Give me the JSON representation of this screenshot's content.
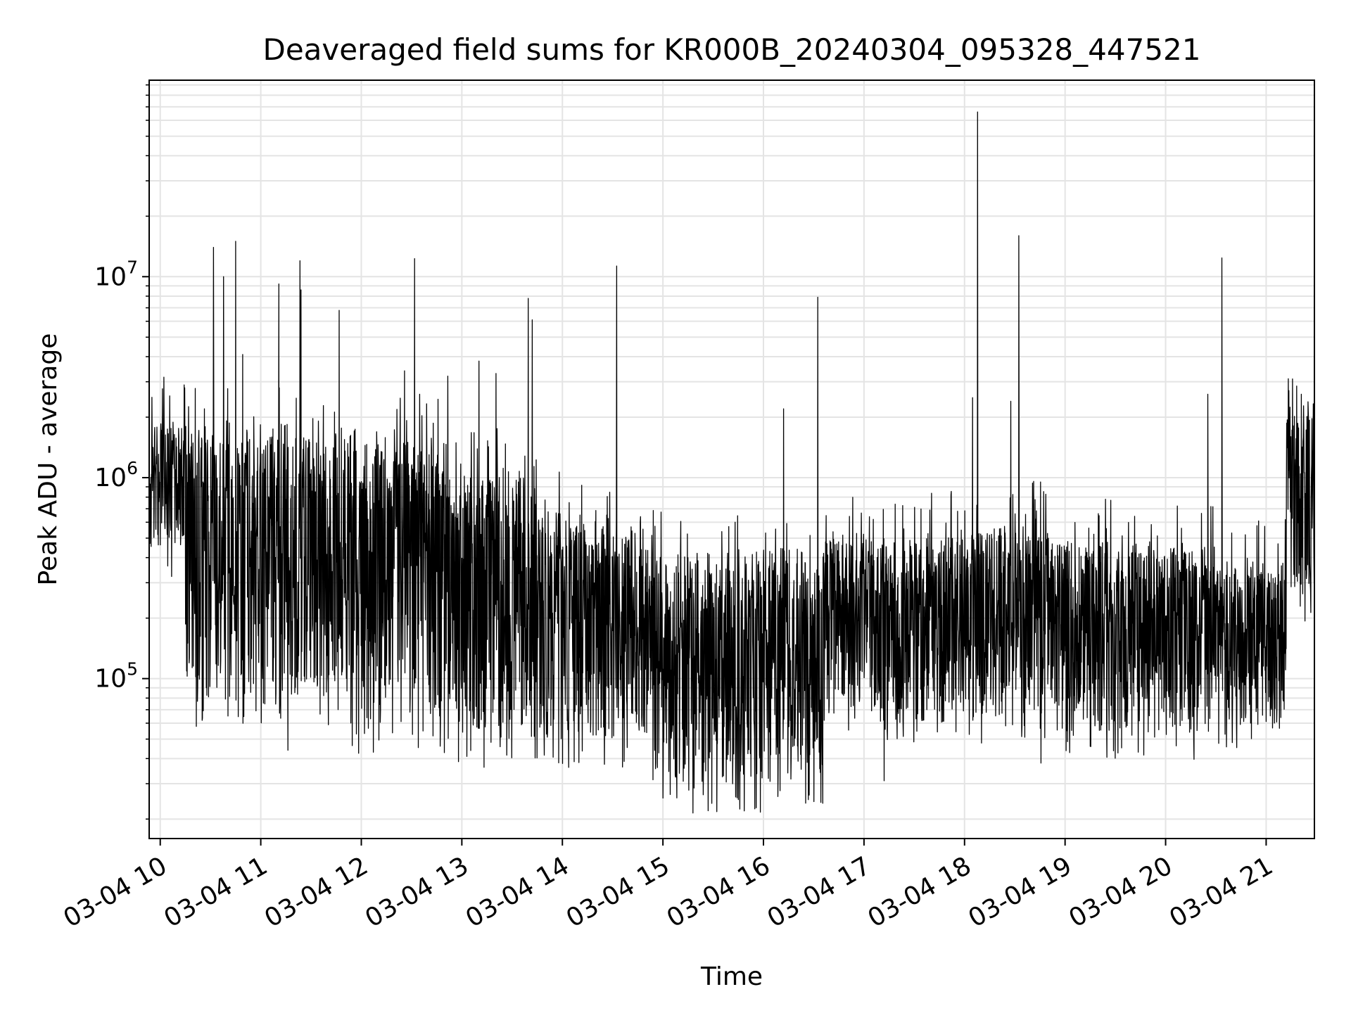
{
  "chart_data": {
    "type": "line",
    "title": "Deaveraged field sums for KR000B_20240304_095328_447521",
    "xlabel": "Time",
    "ylabel": "Peak ADU - average",
    "yscale": "log",
    "grid": true,
    "legend": "none",
    "line_color": "#000000",
    "x_ticks": [
      "03-04 10",
      "03-04 11",
      "03-04 12",
      "03-04 13",
      "03-04 14",
      "03-04 15",
      "03-04 16",
      "03-04 17",
      "03-04 18",
      "03-04 19",
      "03-04 20",
      "03-04 21"
    ],
    "x_tick_hours": [
      10,
      11,
      12,
      13,
      14,
      15,
      16,
      17,
      18,
      19,
      20,
      21
    ],
    "xlim_hours": [
      9.89,
      21.48
    ],
    "y_ticks": [
      {
        "base": "10",
        "exp": "5",
        "value": 100000
      },
      {
        "base": "10",
        "exp": "6",
        "value": 1000000
      },
      {
        "base": "10",
        "exp": "7",
        "value": 10000000
      }
    ],
    "ylim": [
      16000,
      95000000
    ],
    "segments": [
      {
        "start": 9.89,
        "end": 10.25,
        "lo": 450000,
        "hi": 1800000
      },
      {
        "start": 10.25,
        "end": 11.9,
        "lo": 80000,
        "hi": 1600000
      },
      {
        "start": 11.9,
        "end": 12.9,
        "lo": 60000,
        "hi": 1500000
      },
      {
        "start": 12.9,
        "end": 13.75,
        "lo": 50000,
        "hi": 1000000
      },
      {
        "start": 13.75,
        "end": 14.9,
        "lo": 50000,
        "hi": 600000
      },
      {
        "start": 14.9,
        "end": 16.6,
        "lo": 30000,
        "hi": 400000
      },
      {
        "start": 16.6,
        "end": 18.1,
        "lo": 60000,
        "hi": 500000
      },
      {
        "start": 18.1,
        "end": 19.0,
        "lo": 65000,
        "hi": 550000
      },
      {
        "start": 19.0,
        "end": 20.5,
        "lo": 55000,
        "hi": 450000
      },
      {
        "start": 20.5,
        "end": 21.2,
        "lo": 60000,
        "hi": 350000
      },
      {
        "start": 21.2,
        "end": 21.48,
        "lo": 250000,
        "hi": 2200000
      }
    ],
    "spikes": [
      {
        "x": 10.53,
        "y": 14000000
      },
      {
        "x": 10.63,
        "y": 10000000
      },
      {
        "x": 10.75,
        "y": 15000000
      },
      {
        "x": 10.82,
        "y": 4100000
      },
      {
        "x": 11.18,
        "y": 9200000
      },
      {
        "x": 11.39,
        "y": 12000000
      },
      {
        "x": 11.4,
        "y": 8600000
      },
      {
        "x": 11.78,
        "y": 6800000
      },
      {
        "x": 12.43,
        "y": 3400000
      },
      {
        "x": 12.53,
        "y": 12300000
      },
      {
        "x": 12.58,
        "y": 2600000
      },
      {
        "x": 12.86,
        "y": 3200000
      },
      {
        "x": 13.17,
        "y": 3800000
      },
      {
        "x": 13.34,
        "y": 3300000
      },
      {
        "x": 13.66,
        "y": 7800000
      },
      {
        "x": 13.7,
        "y": 6100000
      },
      {
        "x": 14.54,
        "y": 11300000
      },
      {
        "x": 16.2,
        "y": 2200000
      },
      {
        "x": 16.54,
        "y": 7900000
      },
      {
        "x": 18.08,
        "y": 2500000
      },
      {
        "x": 18.13,
        "y": 66000000
      },
      {
        "x": 18.46,
        "y": 2400000
      },
      {
        "x": 18.54,
        "y": 16000000
      },
      {
        "x": 20.42,
        "y": 2600000
      },
      {
        "x": 20.56,
        "y": 12400000
      },
      {
        "x": 21.35,
        "y": 2600000
      }
    ],
    "dips": [
      {
        "x": 11.27,
        "y": 44000
      },
      {
        "x": 12.12,
        "y": 43000
      },
      {
        "x": 13.05,
        "y": 41000
      },
      {
        "x": 15.45,
        "y": 22000
      },
      {
        "x": 15.75,
        "y": 25000
      },
      {
        "x": 16.42,
        "y": 24000
      },
      {
        "x": 17.2,
        "y": 31000
      },
      {
        "x": 18.76,
        "y": 38000
      }
    ]
  }
}
